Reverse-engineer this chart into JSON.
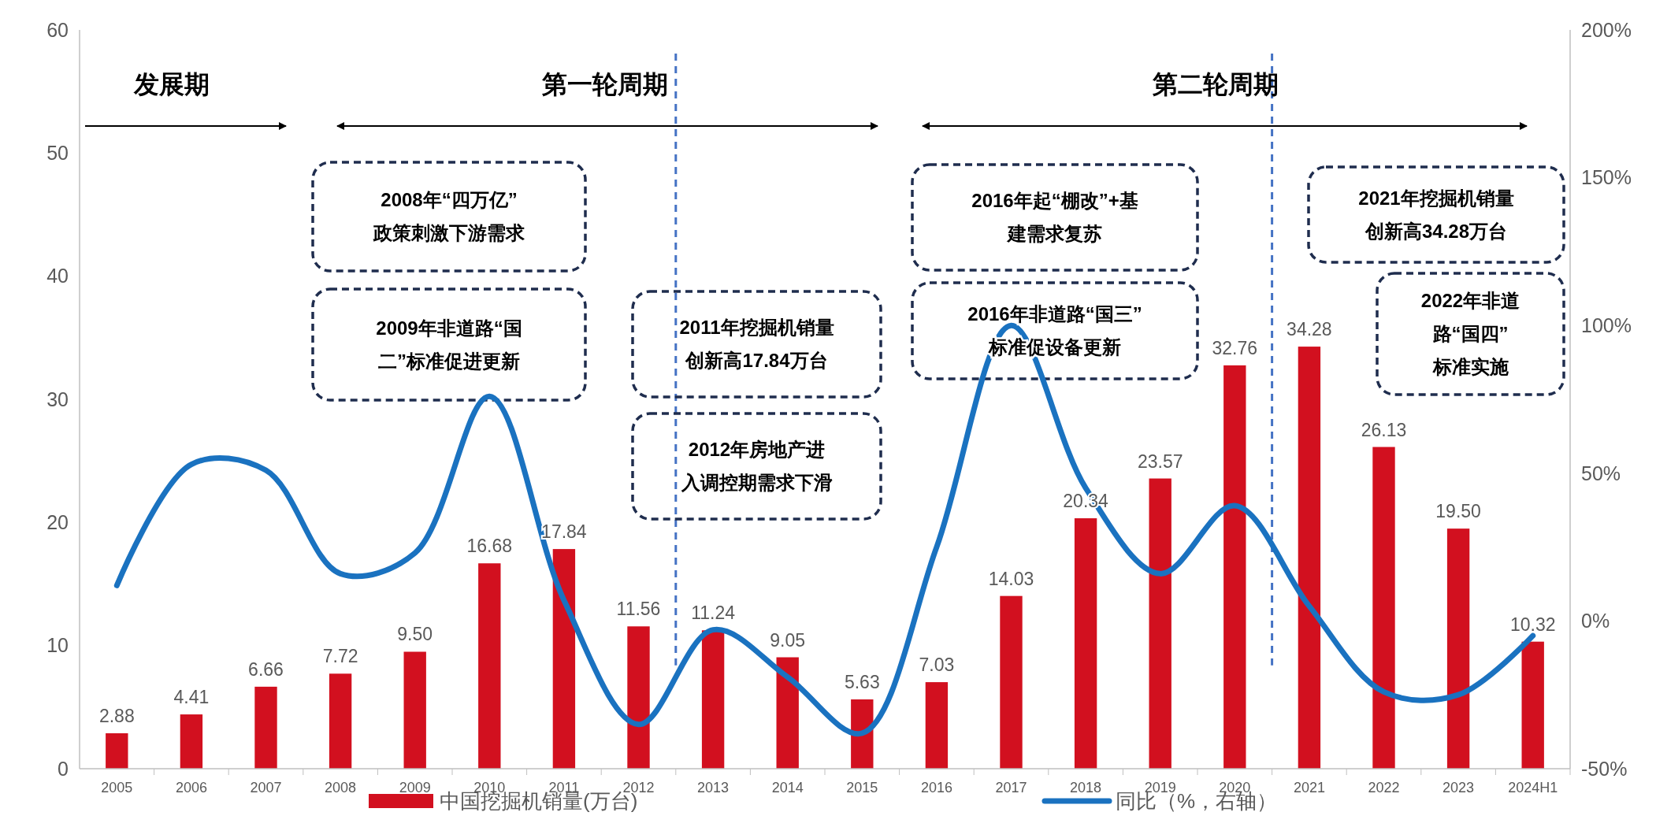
{
  "chart_data": {
    "type": "bar",
    "categories": [
      "2005",
      "2006",
      "2007",
      "2008",
      "2009",
      "2010",
      "2011",
      "2012",
      "2013",
      "2014",
      "2015",
      "2016",
      "2017",
      "2018",
      "2019",
      "2020",
      "2021",
      "2022",
      "2023",
      "2024H1"
    ],
    "series": [
      {
        "name": "中国挖掘机销量(万台)",
        "color": "#d2101f",
        "values": [
          2.88,
          4.41,
          6.66,
          7.72,
          9.5,
          16.68,
          17.84,
          11.56,
          11.24,
          9.05,
          5.63,
          7.03,
          14.03,
          20.34,
          23.57,
          32.76,
          34.28,
          26.13,
          19.5,
          10.32
        ],
        "value_labels": [
          "2.88",
          "4.41",
          "6.66",
          "7.72",
          "9.50",
          "16.68",
          "17.84",
          "11.56",
          "11.24",
          "9.05",
          "5.63",
          "7.03",
          "14.03",
          "20.34",
          "23.57",
          "32.76",
          "34.28",
          "26.13",
          "19.50",
          "10.32"
        ]
      },
      {
        "name": "同比（%，右轴）",
        "type": "line",
        "axis": "y2",
        "color": "#1a72c0",
        "values": [
          12,
          53,
          51,
          16,
          23,
          76,
          7,
          -35,
          -3,
          -19,
          -38,
          25,
          100,
          45,
          16,
          39,
          5,
          -24,
          -25,
          -5
        ]
      }
    ],
    "ylim": [
      0,
      60
    ],
    "yticks": [
      0,
      10,
      20,
      30,
      40,
      50,
      60
    ],
    "y2lim": [
      -50,
      200
    ],
    "y2ticks": [
      {
        "value": -50,
        "label": "-50%"
      },
      {
        "value": 0,
        "label": "0%"
      },
      {
        "value": 50,
        "label": "50%"
      },
      {
        "value": 100,
        "label": "100%"
      },
      {
        "value": 150,
        "label": "150%"
      },
      {
        "value": 200,
        "label": "200%"
      }
    ],
    "annotations": [
      "发展期",
      "第一轮周期",
      "第二轮周期",
      "2008年“四万亿”政策刺激下游需求",
      "2009年非道路“国二”标准促进更新",
      "2011年挖掘机销量创新高17.84万台",
      "2012年房地产进入调控期需求下滑",
      "2016年起“棚改”+基建需求复苏",
      "2016年非道路“国三”标准促设备更新",
      "2021年挖掘机销量创新高34.28万台",
      "2022年非道路“国四”标准实施"
    ],
    "legend": "bottom",
    "grid": false
  }
}
